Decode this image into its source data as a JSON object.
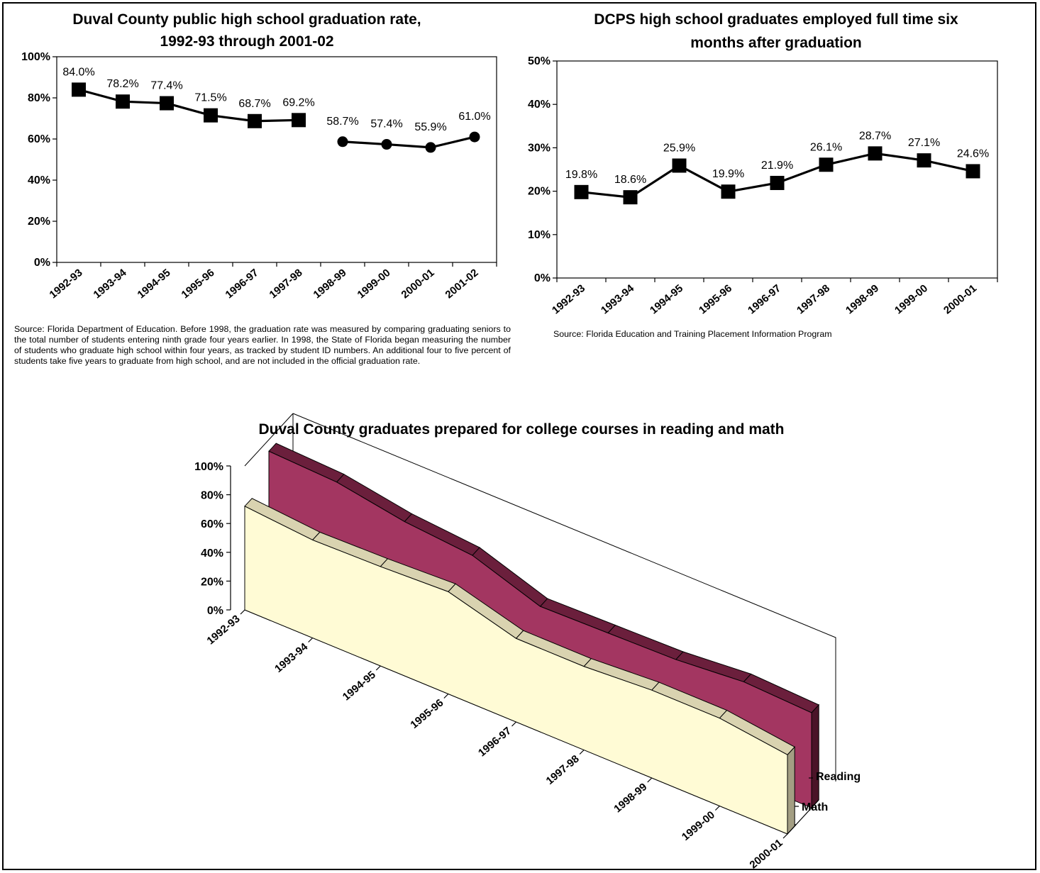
{
  "colors": {
    "reading": "#A33661",
    "reading_top": "#6B1F3C",
    "reading_side": "#4A1428",
    "math": "#FFFBD5",
    "math_top": "#D9D3B0",
    "math_side": "#A39E83",
    "floor": "#9A9A9A"
  },
  "chart_data": [
    {
      "type": "line",
      "title": [
        "Duval County public high school graduation rate,",
        "1992-93 through 2001-02"
      ],
      "categories": [
        "1992-93",
        "1993-94",
        "1994-95",
        "1995-96",
        "1996-97",
        "1997-98",
        "1998-99",
        "1999-00",
        "2000-01",
        "2001-02"
      ],
      "series": [
        {
          "values": [
            84.0,
            78.2,
            77.4,
            71.5,
            68.7,
            69.2,
            null,
            null,
            null,
            null
          ],
          "marker": "square"
        },
        {
          "values": [
            null,
            null,
            null,
            null,
            null,
            null,
            58.7,
            57.4,
            55.9,
            61.0
          ],
          "marker": "circle"
        }
      ],
      "data_labels": [
        "84.0%",
        "78.2%",
        "77.4%",
        "71.5%",
        "68.7%",
        "69.2%",
        "58.7%",
        "57.4%",
        "55.9%",
        "61.0%"
      ],
      "ylim": [
        0,
        100
      ],
      "yticks": [
        "0%",
        "20%",
        "40%",
        "60%",
        "80%",
        "100%"
      ],
      "source": "Source: Florida Department of Education.  Before 1998, the graduation rate was measured by comparing graduating seniors to the total number of students entering ninth grade four years earlier.  In 1998, the State of Florida began measuring the number of students who graduate high school within four years, as tracked by student ID numbers. An additional four to five percent of students take five years to graduate from high school, and are not included in the official graduation rate."
    },
    {
      "type": "line",
      "title": [
        "DCPS high school graduates employed full time six",
        "months after graduation"
      ],
      "categories": [
        "1992-93",
        "1993-94",
        "1994-95",
        "1995-96",
        "1996-97",
        "1997-98",
        "1998-99",
        "1999-00",
        "2000-01"
      ],
      "series": [
        {
          "values": [
            19.8,
            18.6,
            25.9,
            19.9,
            21.9,
            26.1,
            28.7,
            27.1,
            24.6
          ],
          "marker": "square"
        }
      ],
      "data_labels": [
        "19.8%",
        "18.6%",
        "25.9%",
        "19.9%",
        "21.9%",
        "26.1%",
        "28.7%",
        "27.1%",
        "24.6%"
      ],
      "ylim": [
        0,
        50
      ],
      "yticks": [
        "0%",
        "10%",
        "20%",
        "30%",
        "40%",
        "50%"
      ],
      "source": "Source: Florida Education and Training Placement Information Program"
    },
    {
      "type": "area",
      "title": "Duval County graduates prepared for college courses in reading and math",
      "categories": [
        "1992-93",
        "1993-94",
        "1994-95",
        "1995-96",
        "1996-97",
        "1997-98",
        "1998-99",
        "1999-00",
        "2000-01"
      ],
      "series": [
        {
          "name": "Reading",
          "values": [
            92,
            90,
            82,
            78,
            62,
            63,
            64,
            68,
            66
          ]
        },
        {
          "name": "Math",
          "values": [
            72,
            68,
            69,
            71,
            58,
            58,
            61,
            61,
            55
          ]
        }
      ],
      "ylim": [
        0,
        100
      ],
      "yticks": [
        "0%",
        "20%",
        "40%",
        "60%",
        "80%",
        "100%"
      ]
    }
  ]
}
